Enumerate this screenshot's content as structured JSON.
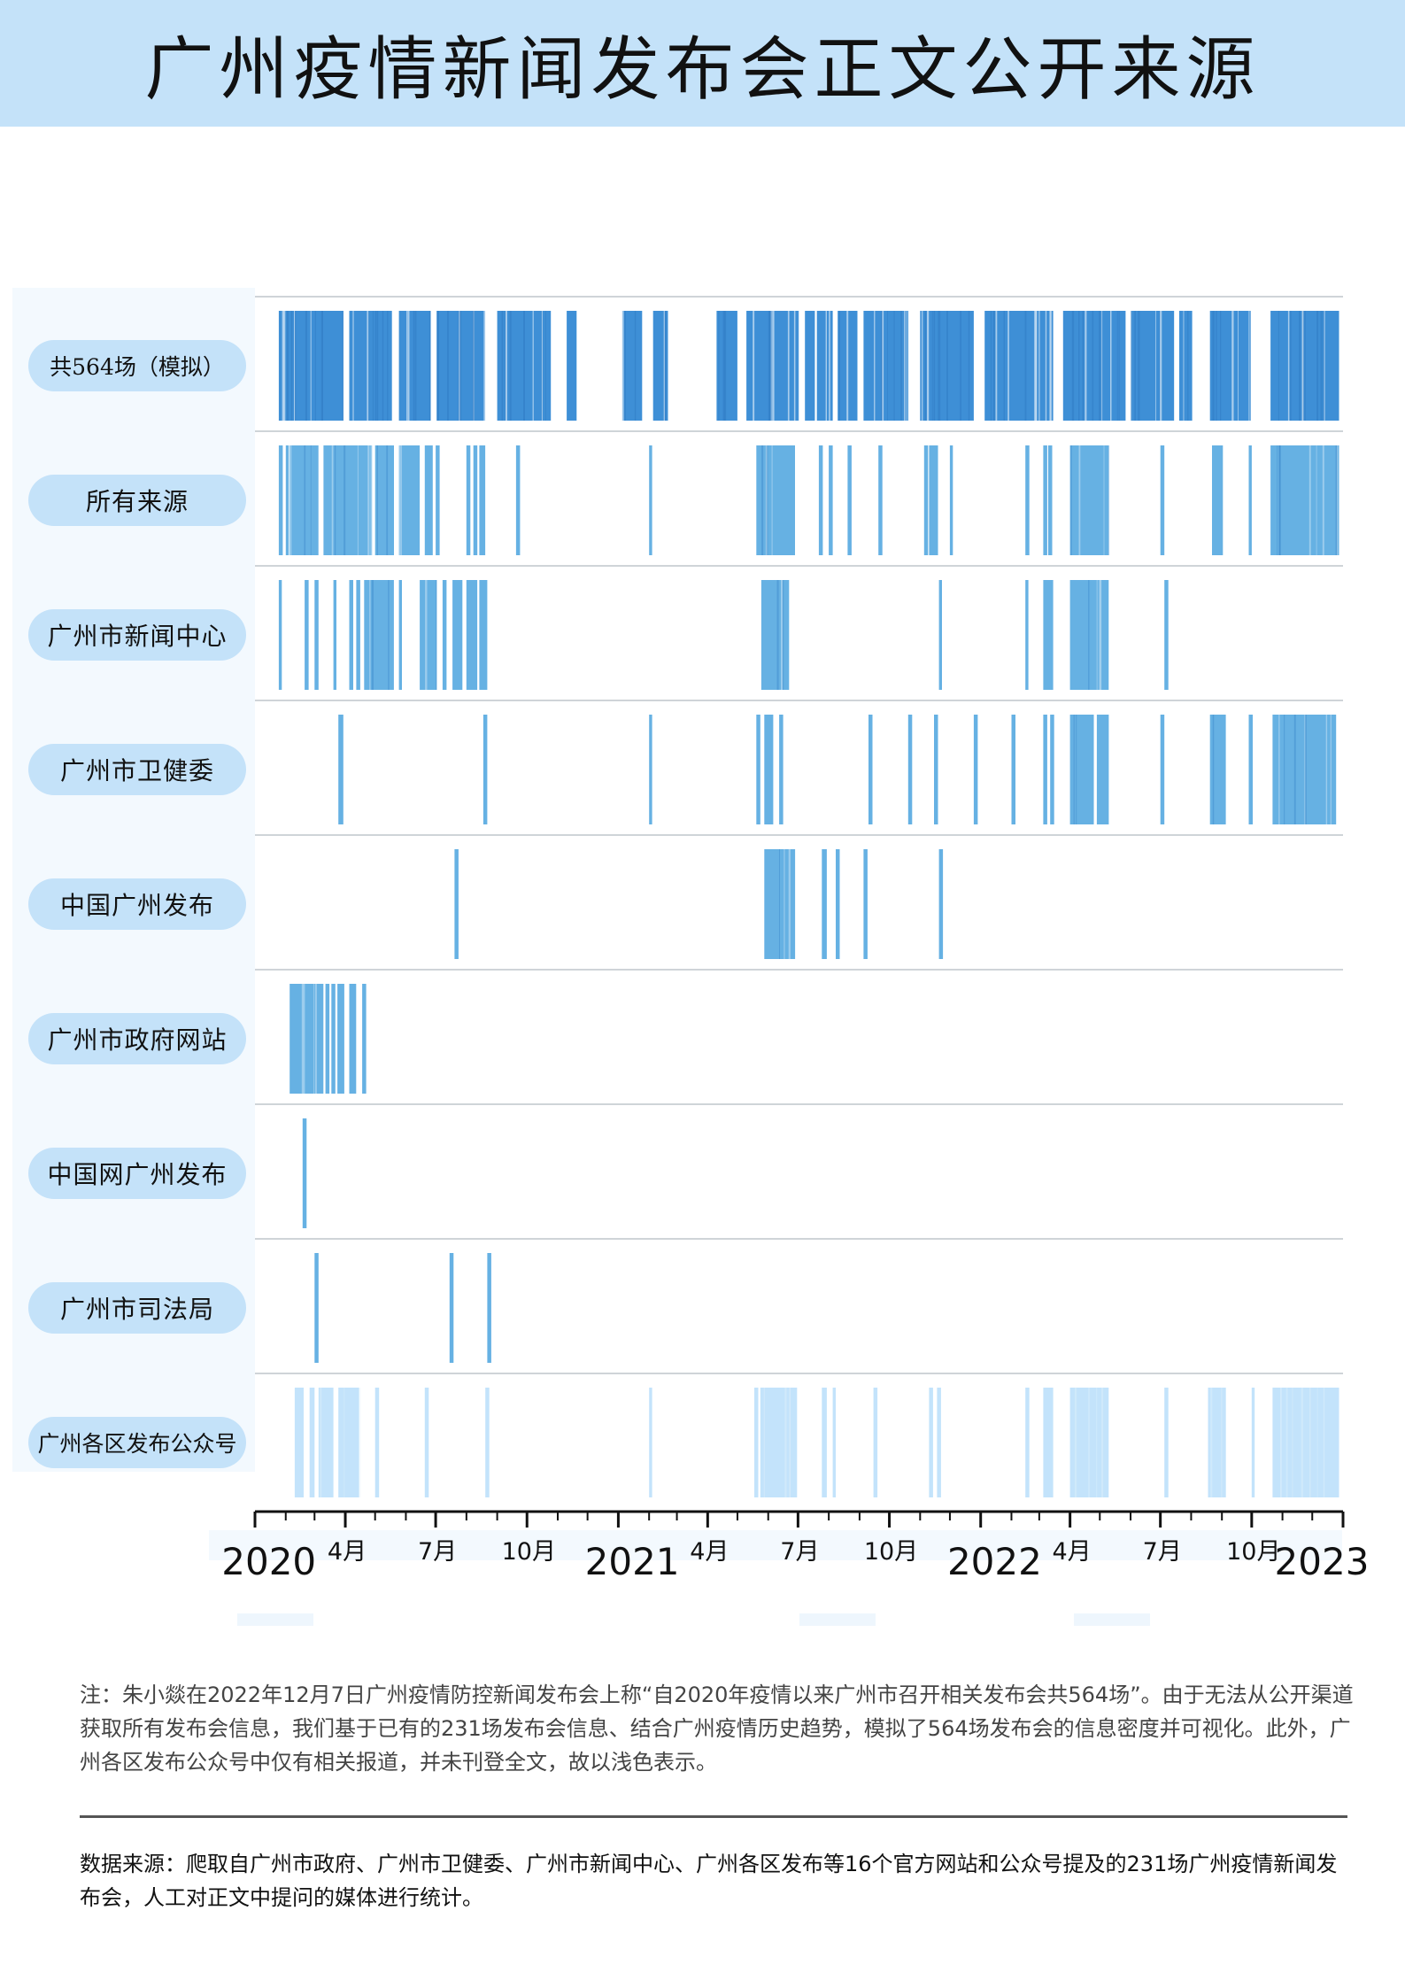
{
  "title": "广州疫情新闻发布会正文公开来源",
  "chart_data": {
    "type": "barcode-timeline",
    "x_range": [
      "2020-01-01",
      "2023-01-01"
    ],
    "year_labels": [
      "2020",
      "2021",
      "2022",
      "2023"
    ],
    "month_labels": [
      "4月",
      "7月",
      "10月",
      "4月",
      "7月",
      "10月",
      "4月",
      "7月",
      "10月"
    ],
    "x_ticks": [
      "2020-01",
      "2020-02",
      "2020-03",
      "2020-04",
      "2020-05",
      "2020-06",
      "2020-07",
      "2020-08",
      "2020-09",
      "2020-10",
      "2020-11",
      "2020-12",
      "2021-01",
      "2021-02",
      "2021-03",
      "2021-04",
      "2021-05",
      "2021-06",
      "2021-07",
      "2021-08",
      "2021-09",
      "2021-10",
      "2021-11",
      "2021-12",
      "2022-01",
      "2022-02",
      "2022-03",
      "2022-04",
      "2022-05",
      "2022-06",
      "2022-07",
      "2022-08",
      "2022-09",
      "2022-10",
      "2022-11",
      "2022-12",
      "2023-01"
    ],
    "rows": [
      {
        "label": "共564场（模拟）",
        "style": "dense",
        "blocks": [
          [
            "2020-01-25",
            "2020-03-30"
          ],
          [
            "2020-04-05",
            "2020-05-18"
          ],
          [
            "2020-05-25",
            "2020-06-26"
          ],
          [
            "2020-07-02",
            "2020-08-20"
          ],
          [
            "2020-09-01",
            "2020-10-25"
          ],
          [
            "2020-11-10",
            "2020-11-20"
          ],
          [
            "2021-01-05",
            "2021-01-25"
          ],
          [
            "2021-02-05",
            "2021-02-20"
          ],
          [
            "2021-04-10",
            "2021-05-01"
          ],
          [
            "2021-05-10",
            "2021-07-02"
          ],
          [
            "2021-07-08",
            "2021-07-18"
          ],
          [
            "2021-07-20",
            "2021-08-05"
          ],
          [
            "2021-08-10",
            "2021-08-30"
          ],
          [
            "2021-09-05",
            "2021-10-20"
          ],
          [
            "2021-11-01",
            "2021-12-25"
          ],
          [
            "2022-01-05",
            "2022-03-15"
          ],
          [
            "2022-03-25",
            "2022-05-27"
          ],
          [
            "2022-06-01",
            "2022-07-15"
          ],
          [
            "2022-07-20",
            "2022-08-02"
          ],
          [
            "2022-08-20",
            "2022-09-30"
          ],
          [
            "2022-10-20",
            "2022-12-28"
          ]
        ]
      },
      {
        "label": "所有来源",
        "style": "normal",
        "blocks": [
          [
            "2020-01-25",
            "2020-01-29"
          ],
          [
            "2020-02-01",
            "2020-02-04"
          ],
          [
            "2020-02-05",
            "2020-03-05"
          ],
          [
            "2020-03-10",
            "2020-04-28"
          ],
          [
            "2020-05-01",
            "2020-05-20"
          ],
          [
            "2020-05-25",
            "2020-06-15"
          ],
          [
            "2020-06-20",
            "2020-06-28"
          ],
          [
            "2020-07-01",
            "2020-07-05"
          ],
          [
            "2020-08-01",
            "2020-08-05"
          ],
          [
            "2020-08-08",
            "2020-08-12"
          ],
          [
            "2020-08-14",
            "2020-08-20"
          ],
          [
            "2020-09-20",
            "2020-09-24"
          ],
          [
            "2021-02-01",
            "2021-02-04"
          ],
          [
            "2021-05-20",
            "2021-06-28"
          ],
          [
            "2021-07-22",
            "2021-07-26"
          ],
          [
            "2021-08-01",
            "2021-08-05"
          ],
          [
            "2021-08-20",
            "2021-08-24"
          ],
          [
            "2021-09-20",
            "2021-09-24"
          ],
          [
            "2021-11-05",
            "2021-11-09"
          ],
          [
            "2021-11-10",
            "2021-11-19"
          ],
          [
            "2021-12-01",
            "2021-12-04"
          ],
          [
            "2022-02-15",
            "2022-02-19"
          ],
          [
            "2022-03-05",
            "2022-03-09"
          ],
          [
            "2022-03-10",
            "2022-03-14"
          ],
          [
            "2022-04-01",
            "2022-05-10"
          ],
          [
            "2022-07-01",
            "2022-07-05"
          ],
          [
            "2022-08-22",
            "2022-09-02"
          ],
          [
            "2022-09-28",
            "2022-10-01"
          ],
          [
            "2022-10-20",
            "2022-12-28"
          ]
        ]
      },
      {
        "label": "广州市新闻中心",
        "style": "normal",
        "blocks": [
          [
            "2020-01-25",
            "2020-01-28"
          ],
          [
            "2020-02-20",
            "2020-02-24"
          ],
          [
            "2020-03-01",
            "2020-03-05"
          ],
          [
            "2020-03-20",
            "2020-03-23"
          ],
          [
            "2020-04-05",
            "2020-04-09"
          ],
          [
            "2020-04-12",
            "2020-04-16"
          ],
          [
            "2020-04-20",
            "2020-05-20"
          ],
          [
            "2020-05-25",
            "2020-05-28"
          ],
          [
            "2020-06-15",
            "2020-07-02"
          ],
          [
            "2020-07-08",
            "2020-07-12"
          ],
          [
            "2020-07-18",
            "2020-07-28"
          ],
          [
            "2020-08-01",
            "2020-08-12"
          ],
          [
            "2020-08-14",
            "2020-08-22"
          ],
          [
            "2021-05-25",
            "2021-06-22"
          ],
          [
            "2021-11-20",
            "2021-11-23"
          ],
          [
            "2022-02-15",
            "2022-02-18"
          ],
          [
            "2022-03-05",
            "2022-03-15"
          ],
          [
            "2022-04-01",
            "2022-05-10"
          ],
          [
            "2022-07-05",
            "2022-07-09"
          ]
        ]
      },
      {
        "label": "广州市卫健委",
        "style": "normal",
        "blocks": [
          [
            "2020-03-25",
            "2020-03-30"
          ],
          [
            "2020-08-18",
            "2020-08-22"
          ],
          [
            "2021-02-01",
            "2021-02-04"
          ],
          [
            "2021-05-20",
            "2021-05-24"
          ],
          [
            "2021-05-28",
            "2021-06-06"
          ],
          [
            "2021-06-12",
            "2021-06-16"
          ],
          [
            "2021-09-10",
            "2021-09-14"
          ],
          [
            "2021-10-20",
            "2021-10-24"
          ],
          [
            "2021-11-15",
            "2021-11-19"
          ],
          [
            "2021-12-25",
            "2021-12-29"
          ],
          [
            "2022-02-01",
            "2022-02-05"
          ],
          [
            "2022-03-05",
            "2022-03-09"
          ],
          [
            "2022-03-12",
            "2022-03-16"
          ],
          [
            "2022-04-01",
            "2022-04-25"
          ],
          [
            "2022-04-28",
            "2022-05-10"
          ],
          [
            "2022-07-01",
            "2022-07-05"
          ],
          [
            "2022-08-20",
            "2022-09-05"
          ],
          [
            "2022-09-28",
            "2022-10-02"
          ],
          [
            "2022-10-22",
            "2022-12-25"
          ]
        ]
      },
      {
        "label": "中国广州发布",
        "style": "normal",
        "blocks": [
          [
            "2020-07-20",
            "2020-07-24"
          ],
          [
            "2021-05-28",
            "2021-06-28"
          ],
          [
            "2021-07-25",
            "2021-07-30"
          ],
          [
            "2021-08-08",
            "2021-08-12"
          ],
          [
            "2021-09-05",
            "2021-09-09"
          ],
          [
            "2021-11-20",
            "2021-11-24"
          ]
        ]
      },
      {
        "label": "广州市政府网站",
        "style": "normal",
        "blocks": [
          [
            "2020-02-05",
            "2020-03-10"
          ],
          [
            "2020-03-12",
            "2020-03-16"
          ],
          [
            "2020-03-18",
            "2020-03-22"
          ],
          [
            "2020-03-24",
            "2020-03-31"
          ],
          [
            "2020-04-05",
            "2020-04-12"
          ],
          [
            "2020-04-18",
            "2020-04-22"
          ]
        ]
      },
      {
        "label": "中国网广州发布",
        "style": "normal",
        "blocks": [
          [
            "2020-02-18",
            "2020-02-22"
          ]
        ]
      },
      {
        "label": "广州市司法局",
        "style": "normal",
        "blocks": [
          [
            "2020-03-01",
            "2020-03-05"
          ],
          [
            "2020-07-15",
            "2020-07-19"
          ],
          [
            "2020-08-22",
            "2020-08-26"
          ]
        ]
      },
      {
        "label": "广州各区发布公众号",
        "style": "light",
        "blocks": [
          [
            "2020-02-10",
            "2020-02-19"
          ],
          [
            "2020-02-25",
            "2020-03-01"
          ],
          [
            "2020-03-05",
            "2020-03-20"
          ],
          [
            "2020-03-25",
            "2020-04-15"
          ],
          [
            "2020-05-01",
            "2020-05-05"
          ],
          [
            "2020-06-20",
            "2020-06-24"
          ],
          [
            "2020-08-20",
            "2020-08-24"
          ],
          [
            "2021-02-01",
            "2021-02-04"
          ],
          [
            "2021-05-18",
            "2021-05-22"
          ],
          [
            "2021-05-24",
            "2021-06-30"
          ],
          [
            "2021-07-25",
            "2021-07-30"
          ],
          [
            "2021-08-05",
            "2021-08-08"
          ],
          [
            "2021-09-15",
            "2021-09-19"
          ],
          [
            "2021-11-10",
            "2021-11-14"
          ],
          [
            "2021-11-18",
            "2021-11-22"
          ],
          [
            "2022-02-15",
            "2022-02-19"
          ],
          [
            "2022-03-05",
            "2022-03-15"
          ],
          [
            "2022-04-01",
            "2022-05-10"
          ],
          [
            "2022-07-05",
            "2022-07-09"
          ],
          [
            "2022-08-18",
            "2022-09-05"
          ],
          [
            "2022-10-01",
            "2022-10-04"
          ],
          [
            "2022-10-22",
            "2022-12-28"
          ]
        ]
      }
    ]
  },
  "note": "注：朱小燚在2022年12月7日广州疫情防控新闻发布会上称“自2020年疫情以来广州市召开相关发布会共564场”。由于无法从公开渠道获取所有发布会信息，我们基于已有的231场发布会信息、结合广州疫情历史趋势，模拟了564场发布会的信息密度并可视化。此外，广州各区发布公众号中仅有相关报道，并未刊登全文，故以浅色表示。",
  "source": "数据来源：爬取自广州市政府、广州市卫健委、广州市新闻中心、广州各区发布等16个官方网站和公众号提及的231场广州疫情新闻发布会，人工对正文中提问的媒体进行统计。",
  "colors": {
    "dense": "#3e8fd6",
    "normal": "#66b1e3",
    "light": "#c3e3fb",
    "title_bg": "#c4e2f9",
    "pill_bg": "#c4e2f9"
  }
}
